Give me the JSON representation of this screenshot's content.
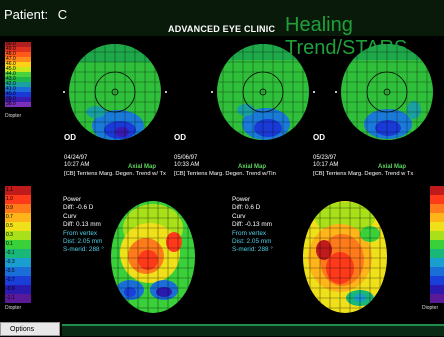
{
  "header": {
    "patient_label": "Patient:",
    "patient_name": "C",
    "clinic": "ADVANCED EYE CLINIC",
    "app_title": "Healing Trend/STARS"
  },
  "top_scale": {
    "values": [
      "50.0",
      "49.0",
      "48.0",
      "47.0",
      "46.0",
      "45.0",
      "44.0",
      "43.0",
      "42.0",
      "41.0",
      "40.0",
      "39.0",
      "38.0"
    ],
    "colors": [
      "#b02020",
      "#e03020",
      "#ff5a1a",
      "#ff8c1a",
      "#ffd21a",
      "#c8e81a",
      "#4ad23a",
      "#1fb84a",
      "#1aa0a0",
      "#1a6ed8",
      "#1a3ad8",
      "#3a1ab0",
      "#7a30b8"
    ],
    "unit": "Diopter"
  },
  "bottom_scale": {
    "values": [
      "1.1",
      "1.0",
      "0.9",
      "0.7",
      "0.5",
      "0.3",
      "0.1",
      "-0.1",
      "-0.3",
      "-0.5",
      "-0.7",
      "-0.9",
      "-1.1"
    ],
    "colors": [
      "#c01a1a",
      "#ff3a1a",
      "#ff7a1a",
      "#ffb41a",
      "#f0e01a",
      "#a8e01a",
      "#3ad03a",
      "#1ab878",
      "#1a9ed0",
      "#1a6ed8",
      "#1a3ed8",
      "#2a1ab0",
      "#5a1a98"
    ],
    "unit": "Diopter"
  },
  "maps": [
    {
      "eye": "OD",
      "date": "04/24/97",
      "time": "10:27 AM",
      "type": "Axial Map",
      "caption": "[CB] Terriens Marg. Degen. Trend w/ Tx"
    },
    {
      "eye": "OD",
      "date": "05/06/97",
      "time": "10:33 AM",
      "type": "Axial Map",
      "caption": "[CB] Terriens Marg. Degen. Trend w/Tin"
    },
    {
      "eye": "OD",
      "date": "05/23/97",
      "time": "10:17 AM",
      "type": "Axial Map",
      "caption": "[CB] Terriens Marg. Degen. Trend w Tx"
    }
  ],
  "diff_left": {
    "power_label": "Power",
    "power_value": "Diff: -0.6 D",
    "curv_label": "Curv",
    "curv_value": "Diff: 0.13 mm",
    "vertex_label": "From vertex",
    "dist_value": "Dist: 2.05 mm",
    "smerid_value": "S-merid: 288 °"
  },
  "diff_right": {
    "power_label": "Power",
    "power_value": "Diff: 0.6 D",
    "curv_label": "Curv",
    "curv_value": "Diff: -0.13 mm",
    "vertex_label": "From vertex",
    "dist_value": "Dist: 2.05 mm",
    "smerid_value": "S-merid: 288 °"
  },
  "footer": {
    "options_label": "Options"
  }
}
